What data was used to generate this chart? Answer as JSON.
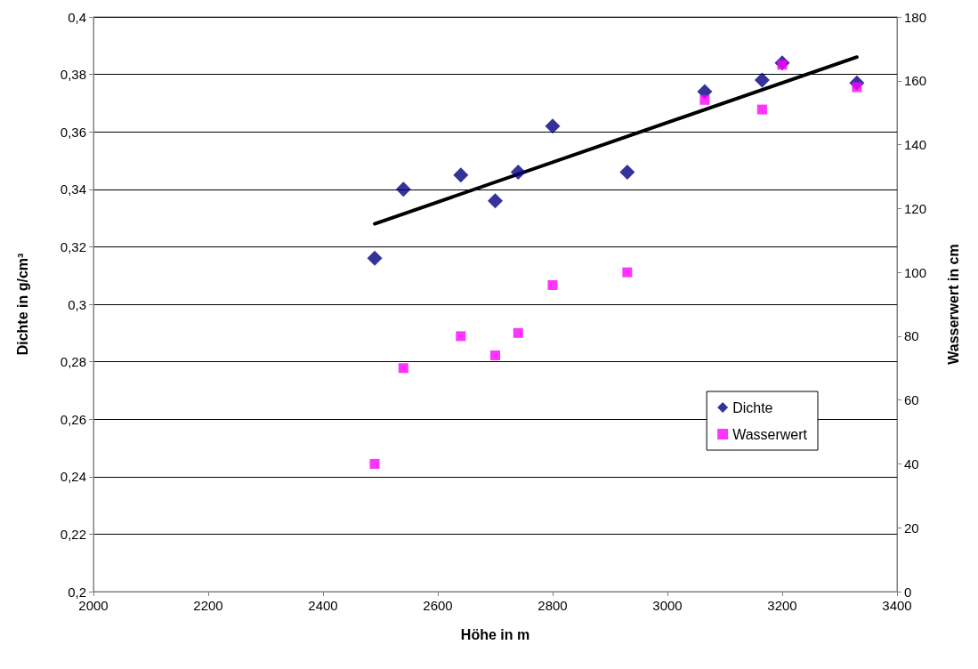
{
  "chart_data": {
    "type": "scatter",
    "xlabel": "Höhe in m",
    "ylabel": "Dichte in g/cm³",
    "y2label": "Wasserwert in cm",
    "xlim": [
      2000,
      3400
    ],
    "xticks": [
      2000,
      2200,
      2400,
      2600,
      2800,
      3000,
      3200,
      3400
    ],
    "ylim": [
      0.2,
      0.4
    ],
    "yticks": [
      {
        "value": 0.2,
        "label": "0,2"
      },
      {
        "value": 0.22,
        "label": "0,22"
      },
      {
        "value": 0.24,
        "label": "0,24"
      },
      {
        "value": 0.26,
        "label": "0,26"
      },
      {
        "value": 0.28,
        "label": "0,28"
      },
      {
        "value": 0.3,
        "label": "0,3"
      },
      {
        "value": 0.32,
        "label": "0,32"
      },
      {
        "value": 0.34,
        "label": "0,34"
      },
      {
        "value": 0.36,
        "label": "0,36"
      },
      {
        "value": 0.38,
        "label": "0,38"
      },
      {
        "value": 0.4,
        "label": "0,4"
      }
    ],
    "y2lim": [
      0,
      180
    ],
    "y2ticks": [
      0,
      20,
      40,
      60,
      80,
      100,
      120,
      140,
      160,
      180
    ],
    "grid": "y",
    "legend": "right",
    "series": [
      {
        "name": "Dichte",
        "color": "#000080",
        "marker": "diamond",
        "x": [
          2490,
          2540,
          2640,
          2700,
          2740,
          2800,
          2930,
          3065,
          3165,
          3200,
          3330
        ],
        "values": [
          0.316,
          0.34,
          0.345,
          0.336,
          0.346,
          0.362,
          0.346,
          0.374,
          0.378,
          0.384,
          0.377
        ]
      },
      {
        "name": "Wasserwert",
        "color": "#ff00ff",
        "marker": "square",
        "axis": "y2",
        "x": [
          2490,
          2540,
          2640,
          2700,
          2740,
          2800,
          2930,
          3065,
          3165,
          3200,
          3330
        ],
        "values": [
          40,
          70,
          80,
          74,
          81,
          96,
          100,
          154,
          151,
          165,
          158
        ]
      },
      {
        "type": "line",
        "color": "#000000",
        "marker": "none",
        "line_style": "solid",
        "x": [
          2490,
          3330
        ],
        "values": [
          0.328,
          0.386
        ]
      }
    ]
  }
}
